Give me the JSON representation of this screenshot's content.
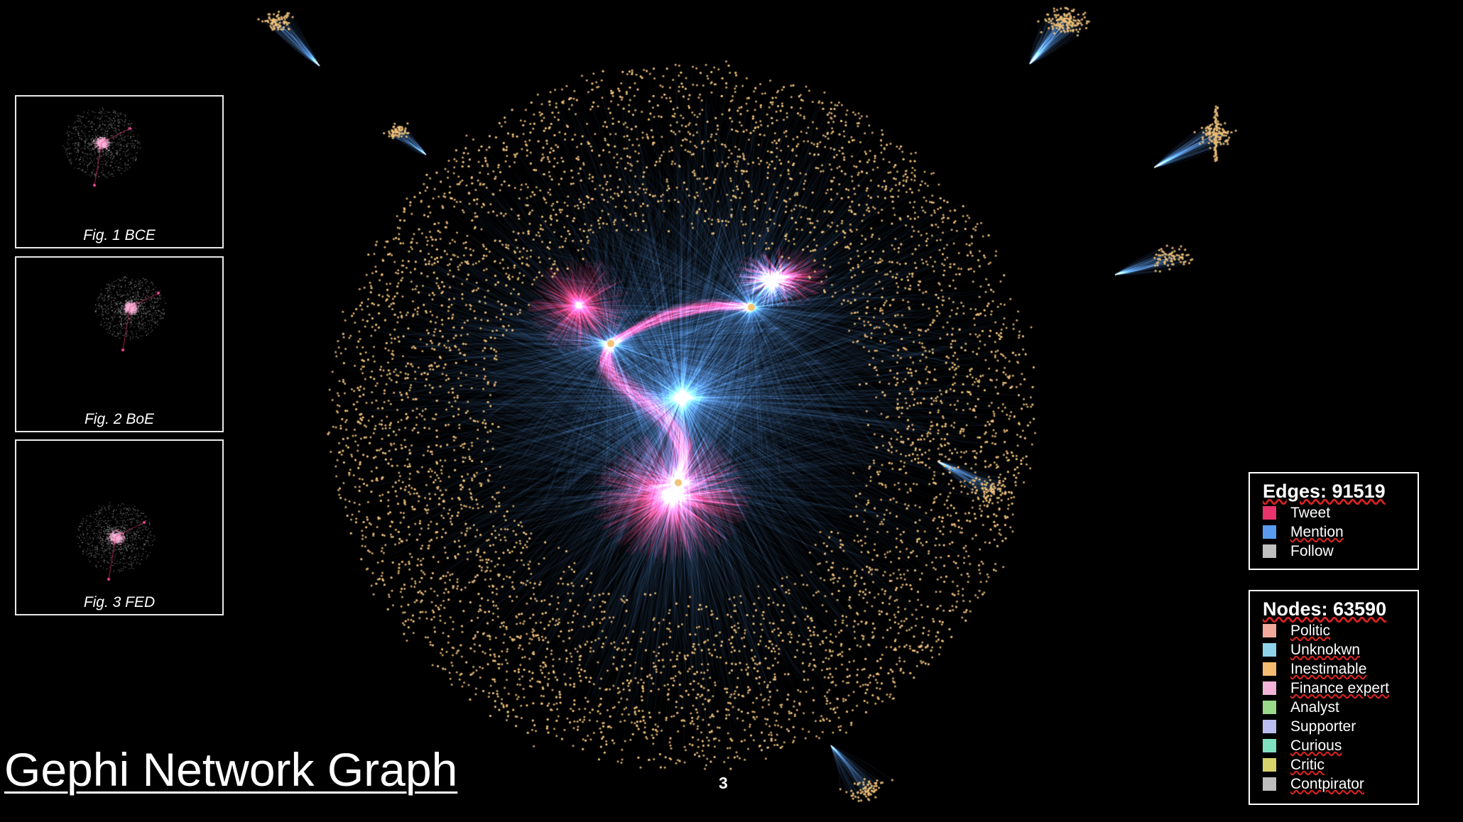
{
  "title": "Gephi Network Graph",
  "page_number": "3",
  "thumbnails": [
    {
      "caption": "Fig. 1 BCE"
    },
    {
      "caption": "Fig. 2 BoE"
    },
    {
      "caption": "Fig. 3 FED"
    }
  ],
  "edges_legend": {
    "title": "Edges: 91519",
    "items": [
      {
        "label": "Tweet",
        "color": "#e8336d"
      },
      {
        "label": "Mention",
        "color": "#5b9bef"
      },
      {
        "label": "Follow",
        "color": "#c0c0c0"
      }
    ]
  },
  "nodes_legend": {
    "title": "Nodes: 63590",
    "items": [
      {
        "label": "Politic",
        "color": "#f2a89b"
      },
      {
        "label": "Unknokwn",
        "color": "#8fd3ea"
      },
      {
        "label": "Inestimable",
        "color": "#f4bb72"
      },
      {
        "label": "Finance expert",
        "color": "#f3b3d8"
      },
      {
        "label": "Analyst",
        "color": "#9ad98a"
      },
      {
        "label": "Supporter",
        "color": "#b9bdf0"
      },
      {
        "label": "Curious",
        "color": "#7fe0c0"
      },
      {
        "label": "Critic",
        "color": "#d6d36a"
      },
      {
        "label": "Contpirator",
        "color": "#bdbdbd"
      }
    ]
  },
  "colors": {
    "background": "#000000",
    "node": "#f2c27a",
    "edge_mention": "#5b9bef",
    "edge_tweet": "#e8336d"
  }
}
